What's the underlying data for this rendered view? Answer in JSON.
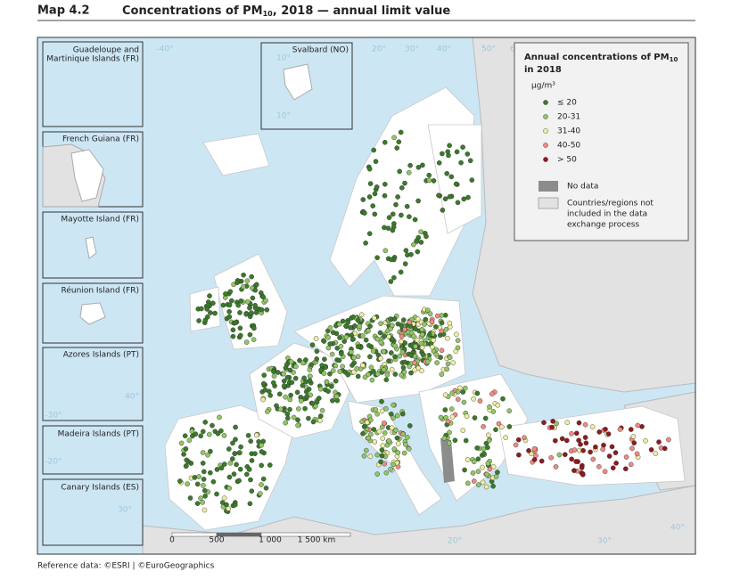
{
  "header": {
    "map_number": "Map 4.2",
    "title_parts": [
      "Concentrations of PM",
      "10",
      ", 2018 — annual limit value"
    ]
  },
  "insets": [
    "Guadeloupe and",
    "Martinique Islands (FR)",
    "Svalbard (NO)",
    "French Guiana (FR)",
    "Mayotte Island (FR)",
    "Réunion Island (FR)",
    "Azores Islands (PT)",
    "Madeira Islands (PT)",
    "Canary Islands (ES)"
  ],
  "legend": {
    "title_parts": [
      "Annual concentrations of PM",
      "10",
      "in 2018"
    ],
    "unit": "μg/m³",
    "classes": [
      {
        "label": "≤ 20",
        "color": "#3b7a2a"
      },
      {
        "label": "20-31",
        "color": "#93c566"
      },
      {
        "label": "31-40",
        "color": "#f0eea0"
      },
      {
        "label": "40-50",
        "color": "#ee8b84"
      },
      {
        "label": "> 50",
        "color": "#8e1b1f"
      }
    ],
    "no_data": {
      "label": "No data",
      "color": "#8c8c8c"
    },
    "not_included": {
      "label_lines": [
        "Countries/regions not",
        "included in the data",
        "exchange process"
      ],
      "color": "#e2e2e2"
    }
  },
  "graticule": [
    "-40°",
    "-30°",
    "-20°",
    "10°",
    "10°",
    "20°",
    "30°",
    "40°",
    "50°",
    "60°",
    "40°",
    "30°",
    "20°",
    "30°",
    "40°"
  ],
  "scale_bar": [
    "0",
    "500",
    "1 000",
    "1 500 km"
  ],
  "footer": "Reference data: ©ESRI | ©EuroGeographics"
}
